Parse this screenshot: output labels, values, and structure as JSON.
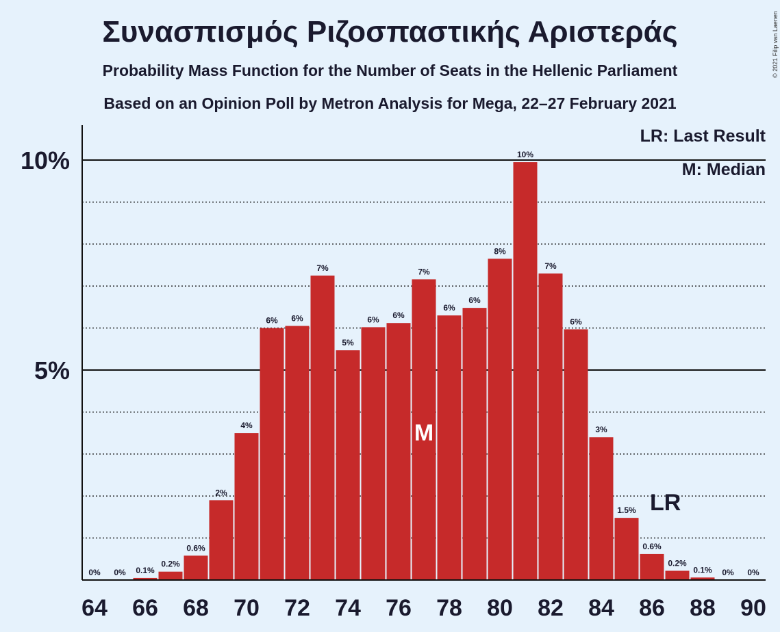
{
  "title": "Συνασπισμός Ριζοσπαστικής Αριστεράς",
  "subtitle1": "Probability Mass Function for the Number of Seats in the Hellenic Parliament",
  "subtitle2": "Based on an Opinion Poll by Metron Analysis for Mega, 22–27 February 2021",
  "copyright": "© 2021 Filip van Laenen",
  "legend": {
    "lr": "LR: Last Result",
    "m": "M: Median"
  },
  "markers": {
    "median_label": "M",
    "median_seat": 77,
    "last_result_label": "LR",
    "last_result_seat": 86
  },
  "colors": {
    "bar": "#c62a2a",
    "background": "#e6f2fc",
    "text": "#1a1a2e"
  },
  "chart_data": {
    "type": "bar",
    "title": "Συνασπισμός Ριζοσπαστικής Αριστεράς",
    "xlabel": "",
    "ylabel": "",
    "ylim": [
      0,
      10.8
    ],
    "y_ticks": [
      5,
      10
    ],
    "y_tick_labels": [
      "5%",
      "10%"
    ],
    "x_tick_labels": [
      "64",
      "66",
      "68",
      "70",
      "72",
      "74",
      "76",
      "78",
      "80",
      "82",
      "84",
      "86",
      "88",
      "90"
    ],
    "grid": "dotted at every 1%, solid at 5% and 10%",
    "categories": [
      64,
      65,
      66,
      67,
      68,
      69,
      70,
      71,
      72,
      73,
      74,
      75,
      76,
      77,
      78,
      79,
      80,
      81,
      82,
      83,
      84,
      85,
      86,
      87,
      88,
      89,
      90
    ],
    "values": [
      0,
      0,
      0.05,
      0.2,
      0.58,
      1.9,
      3.5,
      6.0,
      6.05,
      7.25,
      5.47,
      6.02,
      6.12,
      7.16,
      6.3,
      6.48,
      7.65,
      9.95,
      7.3,
      5.97,
      3.4,
      1.48,
      0.62,
      0.22,
      0.06,
      0,
      0
    ],
    "data_labels": [
      "0%",
      "0%",
      "0.1%",
      "0.2%",
      "0.6%",
      "2%",
      "4%",
      "6%",
      "6%",
      "7%",
      "5%",
      "6%",
      "6%",
      "7%",
      "6%",
      "6%",
      "8%",
      "10%",
      "7%",
      "6%",
      "3%",
      "1.5%",
      "0.6%",
      "0.2%",
      "0.1%",
      "0%",
      "0%"
    ]
  }
}
